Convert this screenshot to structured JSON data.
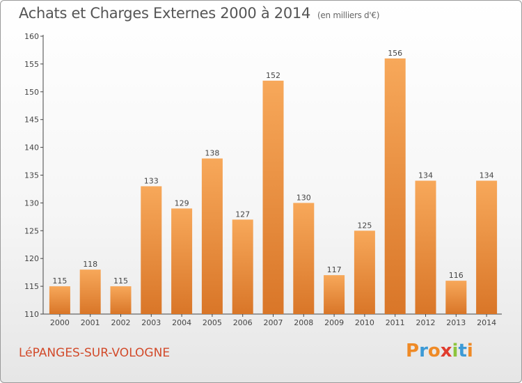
{
  "header": {
    "title": "Achats et Charges Externes 2000 à 2014",
    "subtitle": "(en milliers d'€)"
  },
  "footer": {
    "commune": "LéPANGES-SUR-VOLOGNE",
    "brand": "Proxiti"
  },
  "colors": {
    "bar_top": "#f7a85a",
    "bar_bottom": "#d97628",
    "brand_letters": [
      "#ef8a26",
      "#3c9ad6",
      "#ef8a26",
      "#e03c2e",
      "#8cc43d",
      "#3c9ad6",
      "#ef8a26"
    ]
  },
  "chart_data": {
    "type": "bar",
    "title": "Achats et Charges Externes 2000 à 2014",
    "subtitle": "(en milliers d'€)",
    "categories": [
      "2000",
      "2001",
      "2002",
      "2003",
      "2004",
      "2005",
      "2006",
      "2007",
      "2008",
      "2009",
      "2010",
      "2011",
      "2012",
      "2013",
      "2014"
    ],
    "values": [
      115,
      118,
      115,
      133,
      129,
      138,
      127,
      152,
      130,
      117,
      125,
      156,
      134,
      116,
      134
    ],
    "ylim": [
      110,
      160
    ],
    "yticks": [
      110,
      115,
      120,
      125,
      130,
      135,
      140,
      145,
      150,
      155,
      160
    ],
    "grid": false
  }
}
